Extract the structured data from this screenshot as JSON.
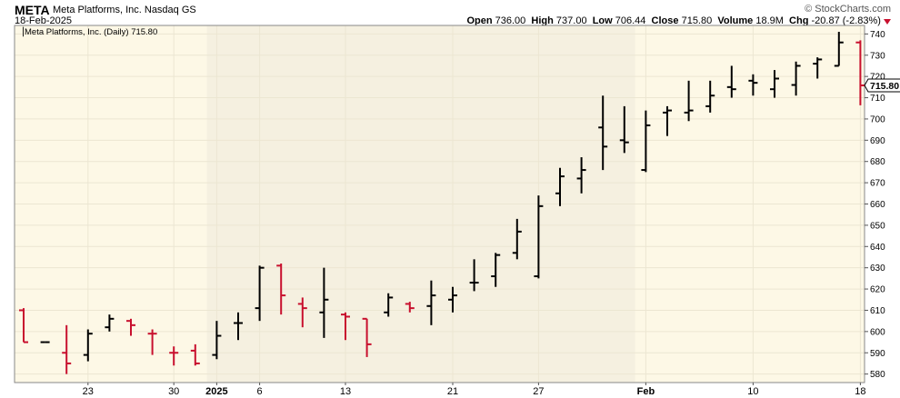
{
  "header": {
    "symbol": "META",
    "company": "Meta Platforms, Inc.",
    "exchange": "Nasdaq GS",
    "date": "18-Feb-2025",
    "brand": "© StockCharts.com",
    "quote": {
      "open_label": "Open",
      "open": "736.00",
      "high_label": "High",
      "high": "737.00",
      "low_label": "Low",
      "low": "706.44",
      "close_label": "Close",
      "close": "715.80",
      "volume_label": "Volume",
      "volume": "18.9M",
      "chg_label": "Chg",
      "chg": "-20.87 (-2.83%)"
    }
  },
  "chart_data": {
    "type": "ohlc-bar",
    "legend": "Meta Platforms, Inc. (Daily) 715.80",
    "last_price_label": "715.80",
    "up_color": "#000000",
    "down_color": "#c8102e",
    "ylim": [
      576,
      744
    ],
    "y_ticks": [
      580,
      590,
      600,
      610,
      620,
      630,
      640,
      650,
      660,
      670,
      680,
      690,
      700,
      710,
      720,
      730,
      740
    ],
    "x_tick_labels": [
      {
        "label": "23",
        "bar": 3
      },
      {
        "label": "30",
        "bar": 7
      },
      {
        "label": "2025",
        "bar": 9,
        "bold": true
      },
      {
        "label": "6",
        "bar": 11
      },
      {
        "label": "13",
        "bar": 15
      },
      {
        "label": "21",
        "bar": 20
      },
      {
        "label": "27",
        "bar": 24
      },
      {
        "label": "Feb",
        "bar": 29,
        "bold": true
      },
      {
        "label": "10",
        "bar": 34
      },
      {
        "label": "18",
        "bar": 39
      }
    ],
    "shaded_bars": [
      9,
      28
    ],
    "bars": [
      {
        "date": "2024-12-18",
        "o": 610,
        "h": 611,
        "l": 595,
        "c": 595
      },
      {
        "date": "2024-12-19",
        "o": 595,
        "h": 595,
        "l": 595,
        "c": 595
      },
      {
        "date": "2024-12-20",
        "o": 590,
        "h": 603,
        "l": 580,
        "c": 585
      },
      {
        "date": "2024-12-23",
        "o": 589,
        "h": 601,
        "l": 586,
        "c": 599
      },
      {
        "date": "2024-12-24",
        "o": 602,
        "h": 608,
        "l": 600,
        "c": 606
      },
      {
        "date": "2024-12-26",
        "o": 605,
        "h": 606,
        "l": 598,
        "c": 603
      },
      {
        "date": "2024-12-27",
        "o": 599,
        "h": 601,
        "l": 589,
        "c": 599
      },
      {
        "date": "2024-12-30",
        "o": 590,
        "h": 593,
        "l": 584,
        "c": 590
      },
      {
        "date": "2024-12-31",
        "o": 591,
        "h": 594,
        "l": 584,
        "c": 585
      },
      {
        "date": "2025-01-02",
        "o": 589,
        "h": 605,
        "l": 587,
        "c": 598
      },
      {
        "date": "2025-01-03",
        "o": 604,
        "h": 609,
        "l": 596,
        "c": 604
      },
      {
        "date": "2025-01-06",
        "o": 611,
        "h": 631,
        "l": 605,
        "c": 630
      },
      {
        "date": "2025-01-07",
        "o": 631,
        "h": 632,
        "l": 608,
        "c": 617
      },
      {
        "date": "2025-01-08",
        "o": 613,
        "h": 616,
        "l": 602,
        "c": 611
      },
      {
        "date": "2025-01-10",
        "o": 609,
        "h": 630,
        "l": 597,
        "c": 615
      },
      {
        "date": "2025-01-13",
        "o": 608,
        "h": 609,
        "l": 596,
        "c": 607
      },
      {
        "date": "2025-01-14",
        "o": 606,
        "h": 606,
        "l": 588,
        "c": 594
      },
      {
        "date": "2025-01-15",
        "o": 609,
        "h": 618,
        "l": 607,
        "c": 616
      },
      {
        "date": "2025-01-16",
        "o": 613,
        "h": 614,
        "l": 609,
        "c": 611
      },
      {
        "date": "2025-01-17",
        "o": 612,
        "h": 624,
        "l": 603,
        "c": 617
      },
      {
        "date": "2025-01-21",
        "o": 615,
        "h": 621,
        "l": 609,
        "c": 617
      },
      {
        "date": "2025-01-22",
        "o": 623,
        "h": 634,
        "l": 619,
        "c": 623
      },
      {
        "date": "2025-01-23",
        "o": 626,
        "h": 637,
        "l": 621,
        "c": 636
      },
      {
        "date": "2025-01-24",
        "o": 637,
        "h": 653,
        "l": 634,
        "c": 647
      },
      {
        "date": "2025-01-27",
        "o": 626,
        "h": 664,
        "l": 625,
        "c": 659
      },
      {
        "date": "2025-01-28",
        "o": 665,
        "h": 677,
        "l": 659,
        "c": 673
      },
      {
        "date": "2025-01-29",
        "o": 672,
        "h": 682,
        "l": 665,
        "c": 676
      },
      {
        "date": "2025-01-30",
        "o": 696,
        "h": 711,
        "l": 676,
        "c": 687
      },
      {
        "date": "2025-01-31",
        "o": 690,
        "h": 706,
        "l": 684,
        "c": 689
      },
      {
        "date": "2025-02-03",
        "o": 676,
        "h": 704,
        "l": 675,
        "c": 697
      },
      {
        "date": "2025-02-04",
        "o": 703,
        "h": 706,
        "l": 692,
        "c": 704
      },
      {
        "date": "2025-02-05",
        "o": 703,
        "h": 718,
        "l": 699,
        "c": 704
      },
      {
        "date": "2025-02-06",
        "o": 706,
        "h": 718,
        "l": 703,
        "c": 711
      },
      {
        "date": "2025-02-07",
        "o": 715,
        "h": 725,
        "l": 710,
        "c": 714
      },
      {
        "date": "2025-02-10",
        "o": 718,
        "h": 721,
        "l": 711,
        "c": 717
      },
      {
        "date": "2025-02-11",
        "o": 714,
        "h": 723,
        "l": 710,
        "c": 719
      },
      {
        "date": "2025-02-12",
        "o": 716,
        "h": 727,
        "l": 711,
        "c": 725
      },
      {
        "date": "2025-02-13",
        "o": 726,
        "h": 729,
        "l": 719,
        "c": 728
      },
      {
        "date": "2025-02-14",
        "o": 725,
        "h": 741,
        "l": 725,
        "c": 736
      },
      {
        "date": "2025-02-18",
        "o": 736,
        "h": 737,
        "l": 706.44,
        "c": 715.8
      }
    ]
  }
}
